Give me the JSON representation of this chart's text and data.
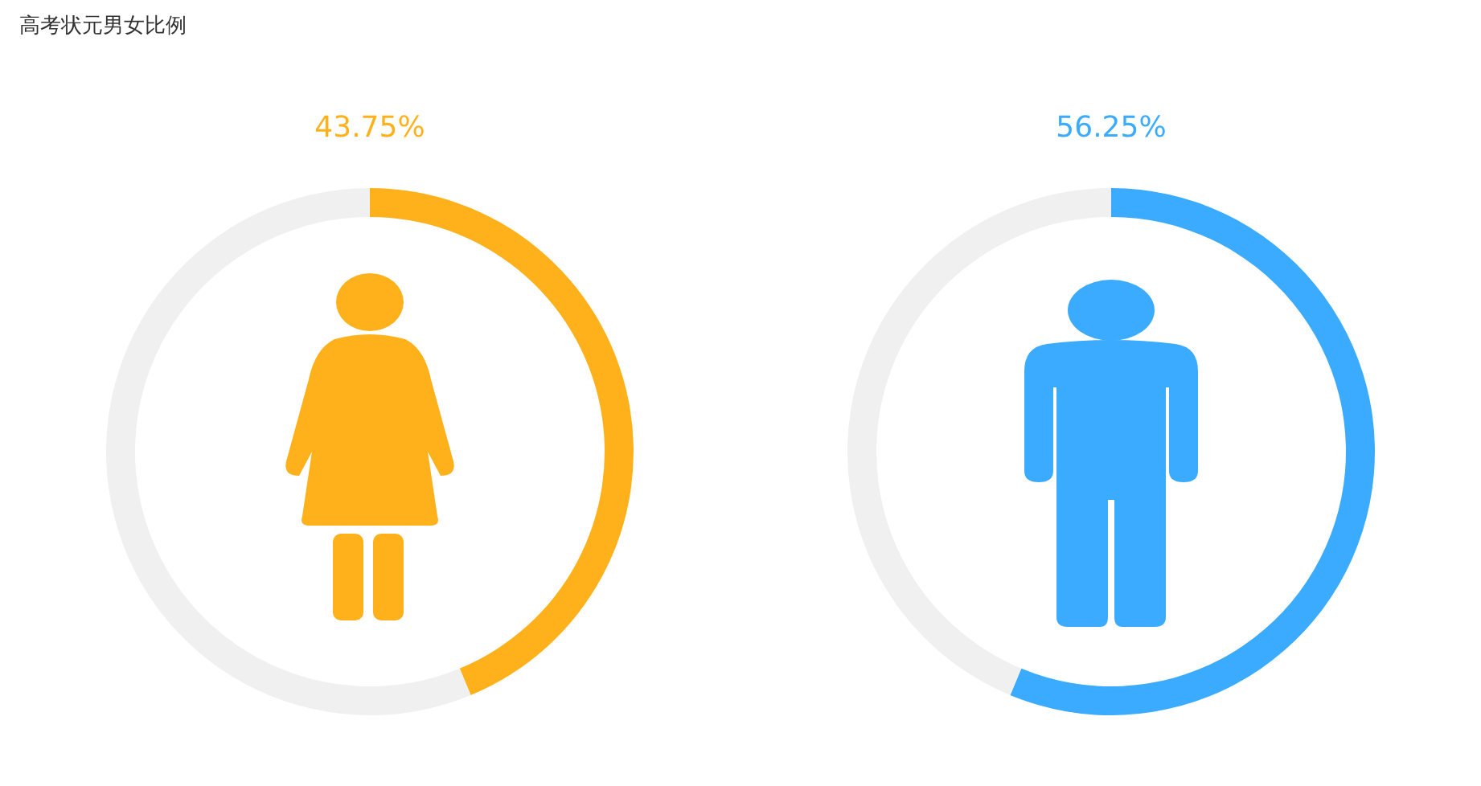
{
  "chart_data": [
    {
      "type": "donut",
      "title": "高考状元男女比例",
      "categories": [
        null,
        null
      ],
      "values": [
        43.75,
        56.25
      ],
      "colors": [
        "#ffb11b",
        "#f0f0f0"
      ],
      "value_labels": [
        "43.75%",
        null
      ]
    },
    {
      "type": "donut",
      "categories": [
        null,
        null
      ],
      "values": [
        56.25,
        43.75
      ],
      "colors": [
        "#3aabff",
        "#f0f0f0"
      ],
      "value_labels": [
        "56.25%",
        null
      ]
    }
  ]
}
